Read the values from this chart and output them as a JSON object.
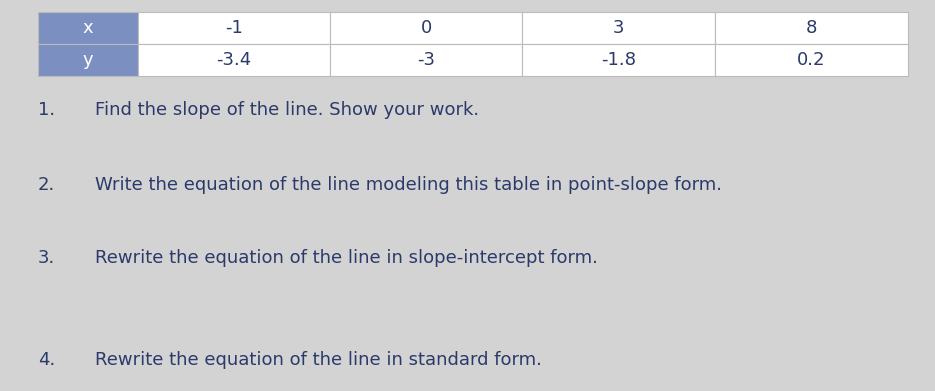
{
  "table": {
    "headers": [
      "x",
      "y"
    ],
    "x_values": [
      "-1",
      "0",
      "3",
      "8"
    ],
    "y_values": [
      "-3.4",
      "-3",
      "-1.8",
      "0.2"
    ],
    "header_bg": "#7b8fc0",
    "header_text": "white",
    "cell_bg": "white",
    "border_color": "#bbbbbb"
  },
  "questions": [
    {
      "number": "1.",
      "text": "Find the slope of the line. Show your work."
    },
    {
      "number": "2.",
      "text": "Write the equation of the line modeling this table in point-slope form."
    },
    {
      "number": "3.",
      "text": "Rewrite the equation of the line in slope-intercept form."
    },
    {
      "number": "4.",
      "text": "Rewrite the equation of the line in standard form."
    }
  ],
  "bg_color": "#d3d3d3",
  "text_color": "#2b3a6b",
  "fontsize": 13
}
